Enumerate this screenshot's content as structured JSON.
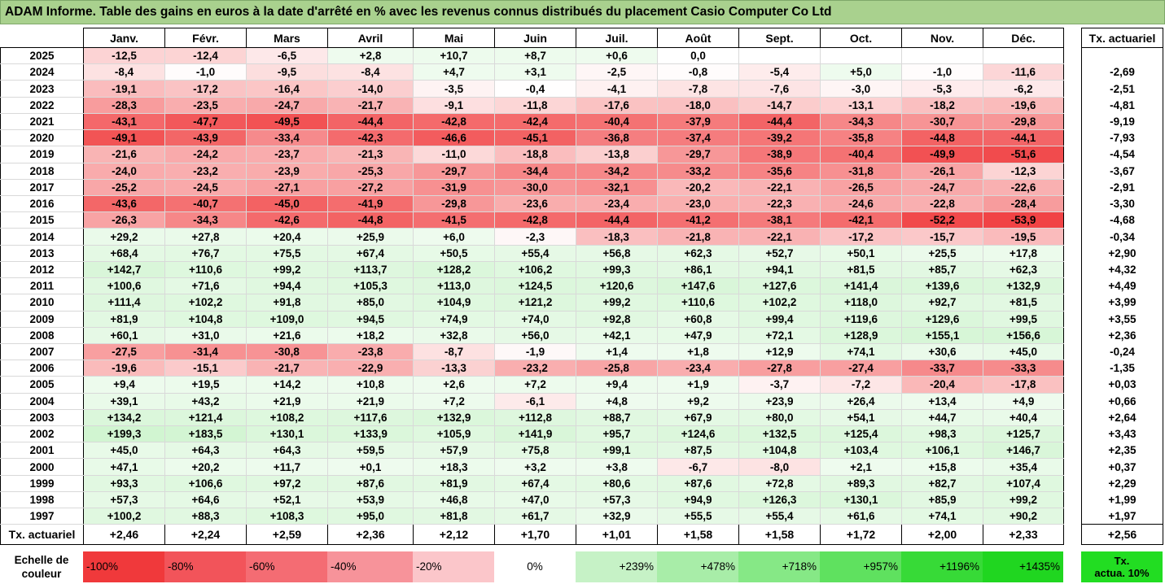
{
  "title": "ADAM Informe. Table des gains en euros à la date d'arrêté en % avec les revenus connus distribués du placement Casio Computer Co Ltd",
  "months": [
    "Janv.",
    "Févr.",
    "Mars",
    "Avril",
    "Mai",
    "Juin",
    "Juil.",
    "Août",
    "Sept.",
    "Oct.",
    "Nov.",
    "Déc."
  ],
  "tx_header": "Tx. actuariel",
  "rows": [
    {
      "year": "2025",
      "values": [
        "-12,5",
        "-12,4",
        "-6,5",
        "+2,8",
        "+10,7",
        "+8,7",
        "+0,6",
        "0,0",
        "",
        "",
        "",
        ""
      ],
      "tx": ""
    },
    {
      "year": "2024",
      "values": [
        "-8,4",
        "-1,0",
        "-9,5",
        "-8,4",
        "+4,7",
        "+3,1",
        "-2,5",
        "-0,8",
        "-5,4",
        "+5,0",
        "-1,0",
        "-11,6"
      ],
      "tx": "-2,69"
    },
    {
      "year": "2023",
      "values": [
        "-19,1",
        "-17,2",
        "-16,4",
        "-14,0",
        "-3,5",
        "-0,4",
        "-4,1",
        "-7,8",
        "-7,6",
        "-3,0",
        "-5,3",
        "-6,2"
      ],
      "tx": "-2,51"
    },
    {
      "year": "2022",
      "values": [
        "-28,3",
        "-23,5",
        "-24,7",
        "-21,7",
        "-9,1",
        "-11,8",
        "-17,6",
        "-18,0",
        "-14,7",
        "-13,1",
        "-18,2",
        "-19,6"
      ],
      "tx": "-4,81"
    },
    {
      "year": "2021",
      "values": [
        "-43,1",
        "-47,7",
        "-49,5",
        "-44,4",
        "-42,8",
        "-42,4",
        "-40,4",
        "-37,9",
        "-44,4",
        "-34,3",
        "-30,7",
        "-29,8"
      ],
      "tx": "-9,19"
    },
    {
      "year": "2020",
      "values": [
        "-49,1",
        "-43,9",
        "-33,4",
        "-42,3",
        "-46,6",
        "-45,1",
        "-36,8",
        "-37,4",
        "-39,2",
        "-35,8",
        "-44,8",
        "-44,1"
      ],
      "tx": "-7,93"
    },
    {
      "year": "2019",
      "values": [
        "-21,6",
        "-24,2",
        "-23,7",
        "-21,3",
        "-11,0",
        "-18,8",
        "-13,8",
        "-29,7",
        "-38,9",
        "-40,4",
        "-49,9",
        "-51,6"
      ],
      "tx": "-4,54"
    },
    {
      "year": "2018",
      "values": [
        "-24,0",
        "-23,2",
        "-23,9",
        "-25,3",
        "-29,7",
        "-34,4",
        "-34,2",
        "-33,2",
        "-35,6",
        "-31,8",
        "-26,1",
        "-12,3"
      ],
      "tx": "-3,67"
    },
    {
      "year": "2017",
      "values": [
        "-25,2",
        "-24,5",
        "-27,1",
        "-27,2",
        "-31,9",
        "-30,0",
        "-32,1",
        "-20,2",
        "-22,1",
        "-26,5",
        "-24,7",
        "-22,6"
      ],
      "tx": "-2,91"
    },
    {
      "year": "2016",
      "values": [
        "-43,6",
        "-40,7",
        "-45,0",
        "-41,9",
        "-29,8",
        "-23,6",
        "-23,4",
        "-23,0",
        "-22,3",
        "-24,6",
        "-22,8",
        "-28,4"
      ],
      "tx": "-3,30"
    },
    {
      "year": "2015",
      "values": [
        "-26,3",
        "-34,3",
        "-42,6",
        "-44,8",
        "-41,5",
        "-42,8",
        "-44,4",
        "-41,2",
        "-38,1",
        "-42,1",
        "-52,2",
        "-53,9"
      ],
      "tx": "-4,68"
    },
    {
      "year": "2014",
      "values": [
        "+29,2",
        "+27,8",
        "+20,4",
        "+25,9",
        "+6,0",
        "-2,3",
        "-18,3",
        "-21,8",
        "-22,1",
        "-17,2",
        "-15,7",
        "-19,5"
      ],
      "tx": "-0,34"
    },
    {
      "year": "2013",
      "values": [
        "+68,4",
        "+76,7",
        "+75,5",
        "+67,4",
        "+50,5",
        "+55,4",
        "+56,8",
        "+62,3",
        "+52,7",
        "+50,1",
        "+25,5",
        "+17,8"
      ],
      "tx": "+2,90"
    },
    {
      "year": "2012",
      "values": [
        "+142,7",
        "+110,6",
        "+99,2",
        "+113,7",
        "+128,2",
        "+106,2",
        "+99,3",
        "+86,1",
        "+94,1",
        "+81,5",
        "+85,7",
        "+62,3"
      ],
      "tx": "+4,32"
    },
    {
      "year": "2011",
      "values": [
        "+100,6",
        "+71,6",
        "+94,4",
        "+105,3",
        "+113,0",
        "+124,5",
        "+120,6",
        "+147,6",
        "+127,6",
        "+141,4",
        "+139,6",
        "+132,9"
      ],
      "tx": "+4,49"
    },
    {
      "year": "2010",
      "values": [
        "+111,4",
        "+102,2",
        "+91,8",
        "+85,0",
        "+104,9",
        "+121,2",
        "+99,2",
        "+110,6",
        "+102,2",
        "+118,0",
        "+92,7",
        "+81,5"
      ],
      "tx": "+3,99"
    },
    {
      "year": "2009",
      "values": [
        "+81,9",
        "+104,8",
        "+109,0",
        "+94,5",
        "+74,9",
        "+74,0",
        "+92,8",
        "+60,8",
        "+99,4",
        "+119,6",
        "+129,6",
        "+99,5"
      ],
      "tx": "+3,55"
    },
    {
      "year": "2008",
      "values": [
        "+60,1",
        "+31,0",
        "+21,6",
        "+18,2",
        "+32,8",
        "+56,0",
        "+42,1",
        "+47,9",
        "+72,1",
        "+128,9",
        "+155,1",
        "+156,6"
      ],
      "tx": "+2,36"
    },
    {
      "year": "2007",
      "values": [
        "-27,5",
        "-31,4",
        "-30,8",
        "-23,8",
        "-8,7",
        "-1,9",
        "+1,4",
        "+1,8",
        "+12,9",
        "+74,1",
        "+30,6",
        "+45,0"
      ],
      "tx": "-0,24"
    },
    {
      "year": "2006",
      "values": [
        "-19,6",
        "-15,1",
        "-21,7",
        "-22,9",
        "-13,3",
        "-23,2",
        "-25,8",
        "-23,4",
        "-27,8",
        "-27,4",
        "-33,7",
        "-33,3"
      ],
      "tx": "-1,35"
    },
    {
      "year": "2005",
      "values": [
        "+9,4",
        "+19,5",
        "+14,2",
        "+10,8",
        "+2,6",
        "+7,2",
        "+9,4",
        "+1,9",
        "-3,7",
        "-7,2",
        "-20,4",
        "-17,8"
      ],
      "tx": "+0,03"
    },
    {
      "year": "2004",
      "values": [
        "+39,1",
        "+43,2",
        "+21,9",
        "+21,9",
        "+7,2",
        "-6,1",
        "+4,8",
        "+9,2",
        "+23,9",
        "+26,4",
        "+13,4",
        "+4,9"
      ],
      "tx": "+0,66"
    },
    {
      "year": "2003",
      "values": [
        "+134,2",
        "+121,4",
        "+108,2",
        "+117,6",
        "+132,9",
        "+112,8",
        "+88,7",
        "+67,9",
        "+80,0",
        "+54,1",
        "+44,7",
        "+40,4"
      ],
      "tx": "+2,64"
    },
    {
      "year": "2002",
      "values": [
        "+199,3",
        "+183,5",
        "+130,1",
        "+133,9",
        "+105,9",
        "+141,9",
        "+95,7",
        "+124,6",
        "+132,5",
        "+125,4",
        "+98,3",
        "+125,7"
      ],
      "tx": "+3,43"
    },
    {
      "year": "2001",
      "values": [
        "+45,0",
        "+64,3",
        "+64,3",
        "+59,5",
        "+57,9",
        "+75,8",
        "+99,1",
        "+87,5",
        "+104,8",
        "+103,4",
        "+106,1",
        "+146,7"
      ],
      "tx": "+2,35"
    },
    {
      "year": "2000",
      "values": [
        "+47,1",
        "+20,2",
        "+11,7",
        "+0,1",
        "+18,3",
        "+3,2",
        "+3,8",
        "-6,7",
        "-8,0",
        "+2,1",
        "+15,8",
        "+35,4"
      ],
      "tx": "+0,37"
    },
    {
      "year": "1999",
      "values": [
        "+93,3",
        "+106,6",
        "+97,2",
        "+87,6",
        "+81,9",
        "+67,4",
        "+80,6",
        "+87,6",
        "+72,8",
        "+89,3",
        "+82,7",
        "+107,4"
      ],
      "tx": "+2,29"
    },
    {
      "year": "1998",
      "values": [
        "+57,3",
        "+64,6",
        "+52,1",
        "+53,9",
        "+46,8",
        "+47,0",
        "+57,3",
        "+94,9",
        "+126,3",
        "+130,1",
        "+85,9",
        "+99,2"
      ],
      "tx": "+1,99"
    },
    {
      "year": "1997",
      "values": [
        "+100,2",
        "+88,3",
        "+108,3",
        "+95,0",
        "+81,8",
        "+61,7",
        "+32,9",
        "+55,5",
        "+55,4",
        "+61,6",
        "+74,1",
        "+90,2"
      ],
      "tx": "+1,97"
    }
  ],
  "footer": {
    "label": "Tx. actuariel",
    "values": [
      "+2,46",
      "+2,24",
      "+2,59",
      "+2,36",
      "+2,12",
      "+1,70",
      "+1,01",
      "+1,58",
      "+1,58",
      "+1,72",
      "+2,00",
      "+2,33"
    ],
    "overall": "+2,56"
  },
  "legend": {
    "label_line1": "Echelle de",
    "label_line2": "couleur",
    "cells": [
      {
        "text": "-100%",
        "color": "#f0393b",
        "align": "neg"
      },
      {
        "text": "-80%",
        "color": "#f2545a",
        "align": "neg"
      },
      {
        "text": "-60%",
        "color": "#f46c73",
        "align": "neg"
      },
      {
        "text": "-40%",
        "color": "#f7939a",
        "align": "neg"
      },
      {
        "text": "-20%",
        "color": "#fbc6ca",
        "align": "neg"
      },
      {
        "text": "0%",
        "color": "#ffffff",
        "align": "zero"
      },
      {
        "text": "+239%",
        "color": "#c6f2c6",
        "align": "pos"
      },
      {
        "text": "+478%",
        "color": "#a8eda8",
        "align": "pos"
      },
      {
        "text": "+718%",
        "color": "#86e886",
        "align": "pos"
      },
      {
        "text": "+957%",
        "color": "#5fe15f",
        "align": "pos"
      },
      {
        "text": "+1196%",
        "color": "#37da37",
        "align": "pos"
      },
      {
        "text": "+1435%",
        "color": "#20d620",
        "align": "pos"
      }
    ],
    "tx_line1": "Tx.",
    "tx_line2": "actua. 10%",
    "tx_color": "#22dd22"
  },
  "colors": {
    "title_bg": "#a9d18e",
    "negative_strong": "#f0393b",
    "positive_light": "#eefaee"
  }
}
